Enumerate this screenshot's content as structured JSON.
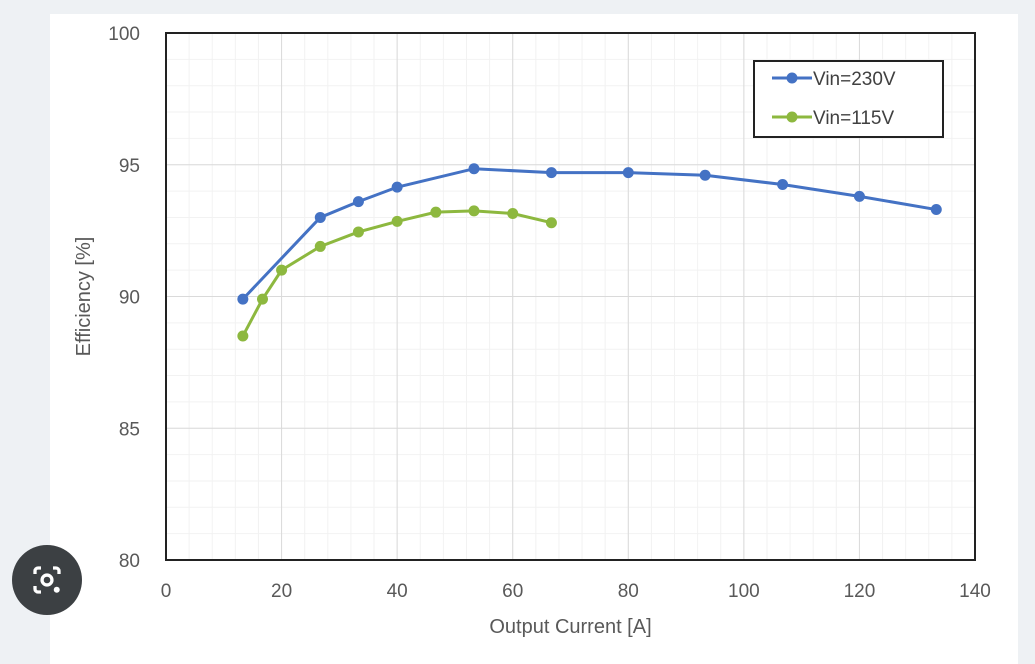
{
  "chart_data": {
    "type": "line",
    "title": "",
    "xlabel": "Output Current [A]",
    "ylabel": "Efficiency [%]",
    "xlim": [
      0,
      140
    ],
    "ylim": [
      80,
      100
    ],
    "xticks": [
      0,
      20,
      40,
      60,
      80,
      100,
      120,
      140
    ],
    "yticks": [
      80,
      85,
      90,
      95,
      100
    ],
    "grid": true,
    "legend_position": "top-right",
    "series": [
      {
        "name": "Vin=230V",
        "color": "#4472c4",
        "x": [
          13.3,
          26.7,
          33.3,
          40,
          53.3,
          66.7,
          80,
          93.3,
          106.7,
          120,
          133.3
        ],
        "y": [
          89.9,
          93.0,
          93.6,
          94.15,
          94.85,
          94.7,
          94.7,
          94.6,
          94.25,
          93.8,
          93.3
        ]
      },
      {
        "name": "Vin=115V",
        "color": "#8db83f",
        "x": [
          13.3,
          16.7,
          20,
          26.7,
          33.3,
          40,
          46.7,
          53.3,
          60,
          66.7
        ],
        "y": [
          88.5,
          89.9,
          91.0,
          91.9,
          92.45,
          92.85,
          93.2,
          93.25,
          93.15,
          92.8
        ]
      }
    ]
  },
  "lens_button": {
    "icon": "camera-search-icon"
  }
}
